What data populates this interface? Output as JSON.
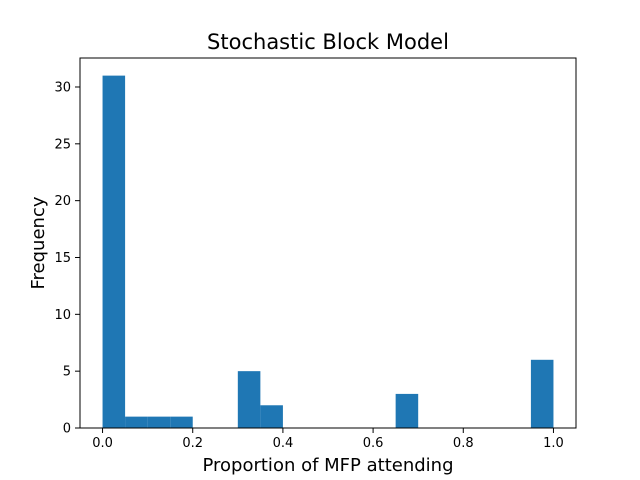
{
  "chart_data": {
    "type": "bar",
    "title": "Stochastic Block Model",
    "xlabel": "Proportion of MFP attending",
    "ylabel": "Frequency",
    "xlim": [
      -0.05,
      1.05
    ],
    "ylim": [
      0,
      32.55
    ],
    "xticks": [
      0.0,
      0.2,
      0.4,
      0.6,
      0.8,
      1.0
    ],
    "xtick_labels": [
      "0.0",
      "0.2",
      "0.4",
      "0.6",
      "0.8",
      "1.0"
    ],
    "yticks": [
      0,
      5,
      10,
      15,
      20,
      25,
      30
    ],
    "ytick_labels": [
      "0",
      "5",
      "10",
      "15",
      "20",
      "25",
      "30"
    ],
    "bin_edges": [
      0.0,
      0.05,
      0.1,
      0.15,
      0.2,
      0.25,
      0.3,
      0.35,
      0.4,
      0.45,
      0.5,
      0.55,
      0.6,
      0.65,
      0.7,
      0.75,
      0.8,
      0.85,
      0.9,
      0.95,
      1.0
    ],
    "values": [
      31,
      1,
      1,
      1,
      0,
      0,
      5,
      2,
      0,
      0,
      0,
      0,
      0,
      3,
      0,
      0,
      0,
      0,
      0,
      6
    ],
    "bar_color": "#1f77b4",
    "grid": false,
    "legend": false
  }
}
